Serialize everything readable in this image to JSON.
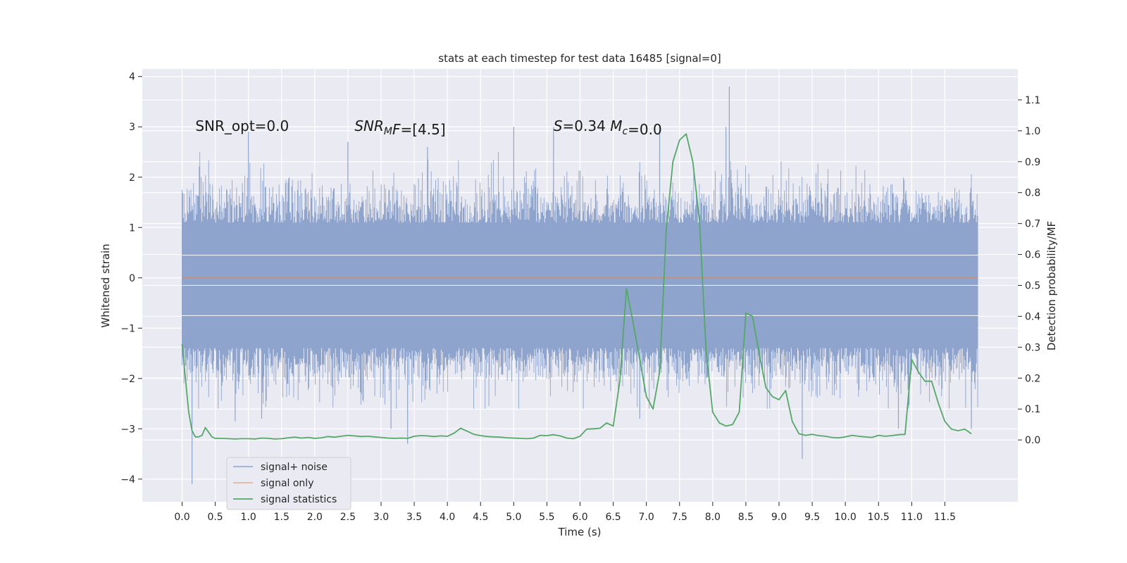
{
  "chart_data": {
    "type": "line",
    "title": "stats at each timestep for test data 16485 [signal=0]",
    "xlabel": "Time (s)",
    "ylabel": "Whitened strain",
    "ylabel_right": "Detection probability/MF",
    "xlim": [
      -0.6,
      12.6
    ],
    "ylim": [
      -4.45,
      4.15
    ],
    "ylim_right": [
      -0.2,
      1.2
    ],
    "x_ticks": [
      0.0,
      0.5,
      1.0,
      1.5,
      2.0,
      2.5,
      3.0,
      3.5,
      4.0,
      4.5,
      5.0,
      5.5,
      6.0,
      6.5,
      7.0,
      7.5,
      8.0,
      8.5,
      9.0,
      9.5,
      10.0,
      10.5,
      11.0,
      11.5
    ],
    "x_tick_labels": [
      "0.0",
      "0.5",
      "1.0",
      "1.5",
      "2.0",
      "2.5",
      "3.0",
      "3.5",
      "4.0",
      "4.5",
      "5.0",
      "5.5",
      "6.0",
      "6.5",
      "7.0",
      "7.5",
      "8.0",
      "8.5",
      "9.0",
      "9.5",
      "10.0",
      "10.5",
      "11.0",
      "11.5"
    ],
    "y_ticks": [
      -4,
      -3,
      -2,
      -1,
      0,
      1,
      2,
      3,
      4
    ],
    "y_tick_labels": [
      "−4",
      "−3",
      "−2",
      "−1",
      "0",
      "1",
      "2",
      "3",
      "4"
    ],
    "y_right_ticks": [
      0.0,
      0.1,
      0.2,
      0.3,
      0.4,
      0.5,
      0.6,
      0.7,
      0.8,
      0.9,
      1.0,
      1.1
    ],
    "y_right_tick_labels": [
      "0.0",
      "0.1",
      "0.2",
      "0.3",
      "0.4",
      "0.5",
      "0.6",
      "0.7",
      "0.8",
      "0.9",
      "1.0",
      "1.1"
    ],
    "grid": true,
    "legend_position": "lower-left",
    "annotations": [
      {
        "x": 0.2,
        "y": 3.0,
        "parts": [
          {
            "text": "SNR_opt=0.0",
            "style": "normal"
          }
        ]
      },
      {
        "x": 2.6,
        "y": 3.0,
        "parts": [
          {
            "text": "SNR",
            "style": "italic"
          },
          {
            "text": "M",
            "style": "italic-sub"
          },
          {
            "text": "F",
            "style": "italic"
          },
          {
            "text": "=[4.5]",
            "style": "normal"
          }
        ]
      },
      {
        "x": 5.6,
        "y": 3.0,
        "parts": [
          {
            "text": "S",
            "style": "italic"
          },
          {
            "text": "=0.34   ",
            "style": "normal"
          },
          {
            "text": "M",
            "style": "italic"
          },
          {
            "text": "c",
            "style": "italic-sub"
          },
          {
            "text": "=0.0",
            "style": "normal"
          }
        ]
      }
    ],
    "series": [
      {
        "name": "signal+ noise",
        "color": "#8fa4cc",
        "axis": "left",
        "x_range": [
          0.0,
          12.0
        ],
        "y_range": [
          -4.1,
          3.8
        ],
        "spikes": [
          {
            "x": 0.15,
            "y": -4.1
          },
          {
            "x": 0.8,
            "y": -2.85
          },
          {
            "x": 1.2,
            "y": -2.8
          },
          {
            "x": 1.0,
            "y": 2.9
          },
          {
            "x": 2.5,
            "y": 2.7
          },
          {
            "x": 3.15,
            "y": -3.0
          },
          {
            "x": 3.4,
            "y": -3.3
          },
          {
            "x": 3.7,
            "y": 2.6
          },
          {
            "x": 5.0,
            "y": 3.0
          },
          {
            "x": 5.6,
            "y": 3.0
          },
          {
            "x": 6.9,
            "y": -2.8
          },
          {
            "x": 7.2,
            "y": 3.0
          },
          {
            "x": 8.25,
            "y": 3.8
          },
          {
            "x": 8.2,
            "y": 3.0
          },
          {
            "x": 9.35,
            "y": -3.6
          },
          {
            "x": 10.8,
            "y": -3.0
          },
          {
            "x": 11.9,
            "y": -3.0
          }
        ]
      },
      {
        "name": "signal only",
        "color": "#dd8452",
        "axis": "left",
        "x": [
          0.0,
          12.0
        ],
        "values": [
          0.0,
          0.0
        ]
      },
      {
        "name": "signal statistics",
        "color": "#55a868",
        "axis": "right",
        "x": [
          0.0,
          0.05,
          0.1,
          0.15,
          0.2,
          0.25,
          0.3,
          0.35,
          0.4,
          0.45,
          0.5,
          0.6,
          0.7,
          0.8,
          0.9,
          1.0,
          1.1,
          1.2,
          1.3,
          1.4,
          1.5,
          1.6,
          1.7,
          1.8,
          1.9,
          2.0,
          2.1,
          2.2,
          2.3,
          2.4,
          2.5,
          2.6,
          2.7,
          2.8,
          2.9,
          3.0,
          3.1,
          3.2,
          3.3,
          3.4,
          3.5,
          3.6,
          3.7,
          3.8,
          3.9,
          4.0,
          4.1,
          4.2,
          4.3,
          4.4,
          4.5,
          4.6,
          4.7,
          4.8,
          4.9,
          5.0,
          5.1,
          5.2,
          5.3,
          5.4,
          5.5,
          5.6,
          5.7,
          5.8,
          5.9,
          6.0,
          6.1,
          6.2,
          6.3,
          6.4,
          6.5,
          6.6,
          6.7,
          6.8,
          6.9,
          7.0,
          7.1,
          7.2,
          7.3,
          7.4,
          7.5,
          7.6,
          7.7,
          7.8,
          7.9,
          8.0,
          8.1,
          8.2,
          8.3,
          8.4,
          8.5,
          8.6,
          8.7,
          8.8,
          8.9,
          9.0,
          9.1,
          9.2,
          9.3,
          9.4,
          9.5,
          9.6,
          9.7,
          9.8,
          9.9,
          10.0,
          10.1,
          10.2,
          10.3,
          10.4,
          10.5,
          10.6,
          10.7,
          10.8,
          10.9,
          11.0,
          11.1,
          11.2,
          11.3,
          11.4,
          11.5,
          11.6,
          11.7,
          11.8,
          11.9
        ],
        "values": [
          0.31,
          0.2,
          0.09,
          0.03,
          0.01,
          0.01,
          0.015,
          0.04,
          0.025,
          0.01,
          0.005,
          0.005,
          0.004,
          0.003,
          0.004,
          0.004,
          0.003,
          0.006,
          0.005,
          0.003,
          0.004,
          0.007,
          0.009,
          0.006,
          0.008,
          0.005,
          0.007,
          0.011,
          0.009,
          0.012,
          0.015,
          0.013,
          0.011,
          0.012,
          0.01,
          0.008,
          0.006,
          0.005,
          0.006,
          0.005,
          0.012,
          0.014,
          0.013,
          0.011,
          0.013,
          0.012,
          0.022,
          0.038,
          0.028,
          0.018,
          0.014,
          0.011,
          0.01,
          0.009,
          0.007,
          0.006,
          0.005,
          0.004,
          0.006,
          0.015,
          0.014,
          0.017,
          0.013,
          0.006,
          0.004,
          0.012,
          0.035,
          0.036,
          0.038,
          0.055,
          0.045,
          0.19,
          0.49,
          0.38,
          0.26,
          0.14,
          0.1,
          0.22,
          0.68,
          0.9,
          0.97,
          0.99,
          0.9,
          0.71,
          0.29,
          0.09,
          0.055,
          0.045,
          0.05,
          0.09,
          0.41,
          0.4,
          0.28,
          0.17,
          0.14,
          0.13,
          0.16,
          0.06,
          0.02,
          0.015,
          0.018,
          0.014,
          0.012,
          0.008,
          0.007,
          0.01,
          0.015,
          0.012,
          0.01,
          0.008,
          0.015,
          0.012,
          0.014,
          0.017,
          0.018,
          0.26,
          0.22,
          0.19,
          0.19,
          0.12,
          0.06,
          0.035,
          0.03,
          0.035,
          0.02
        ]
      }
    ]
  }
}
